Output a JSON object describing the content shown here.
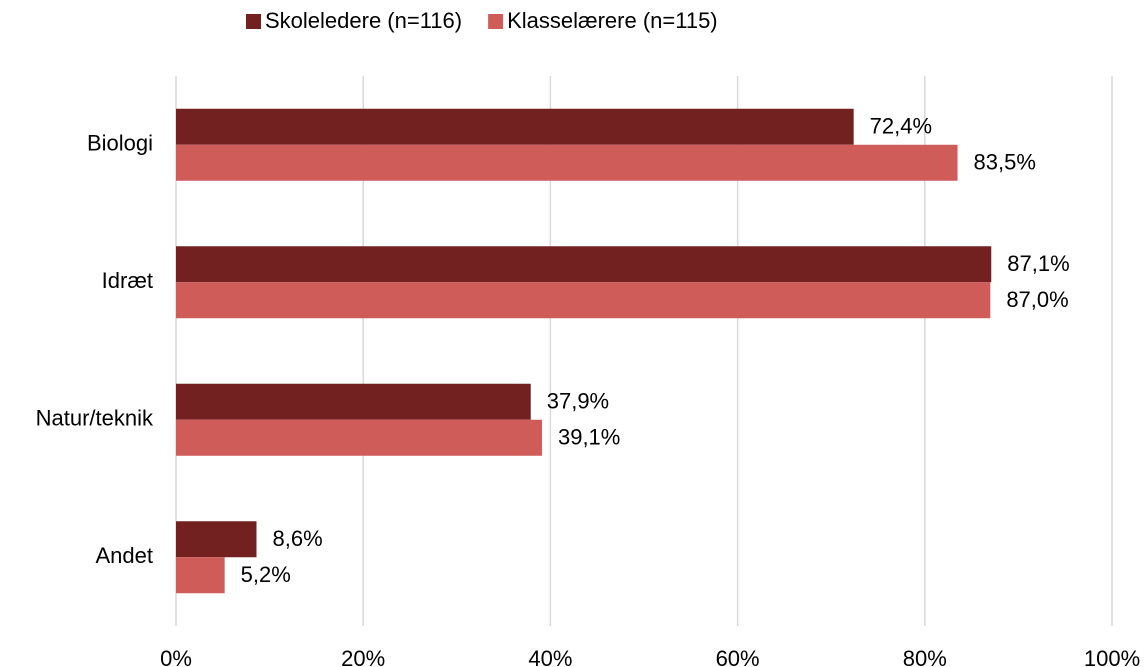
{
  "chart_data": {
    "type": "bar",
    "orientation": "horizontal",
    "categories": [
      "Biologi",
      "Idræt",
      "Natur/teknik",
      "Andet"
    ],
    "series": [
      {
        "name": "Skoleledere (n=116)",
        "color": "#722120",
        "values": [
          72.4,
          87.1,
          37.9,
          8.6
        ],
        "value_labels": [
          "72,4%",
          "87,1%",
          "37,9%",
          "8,6%"
        ]
      },
      {
        "name": "Klasselærere (n=115)",
        "color": "#d05c5a",
        "values": [
          83.5,
          87.0,
          39.1,
          5.2
        ],
        "value_labels": [
          "83,5%",
          "87,0%",
          "39,1%",
          "5,2%"
        ]
      }
    ],
    "xlim": [
      0,
      100
    ],
    "xticks": [
      {
        "value": 0,
        "label": "0%"
      },
      {
        "value": 20,
        "label": "20%"
      },
      {
        "value": 40,
        "label": "40%"
      },
      {
        "value": 60,
        "label": "60%"
      },
      {
        "value": 80,
        "label": "80%"
      },
      {
        "value": 100,
        "label": "100%"
      }
    ],
    "grid": true,
    "legend": "top"
  }
}
